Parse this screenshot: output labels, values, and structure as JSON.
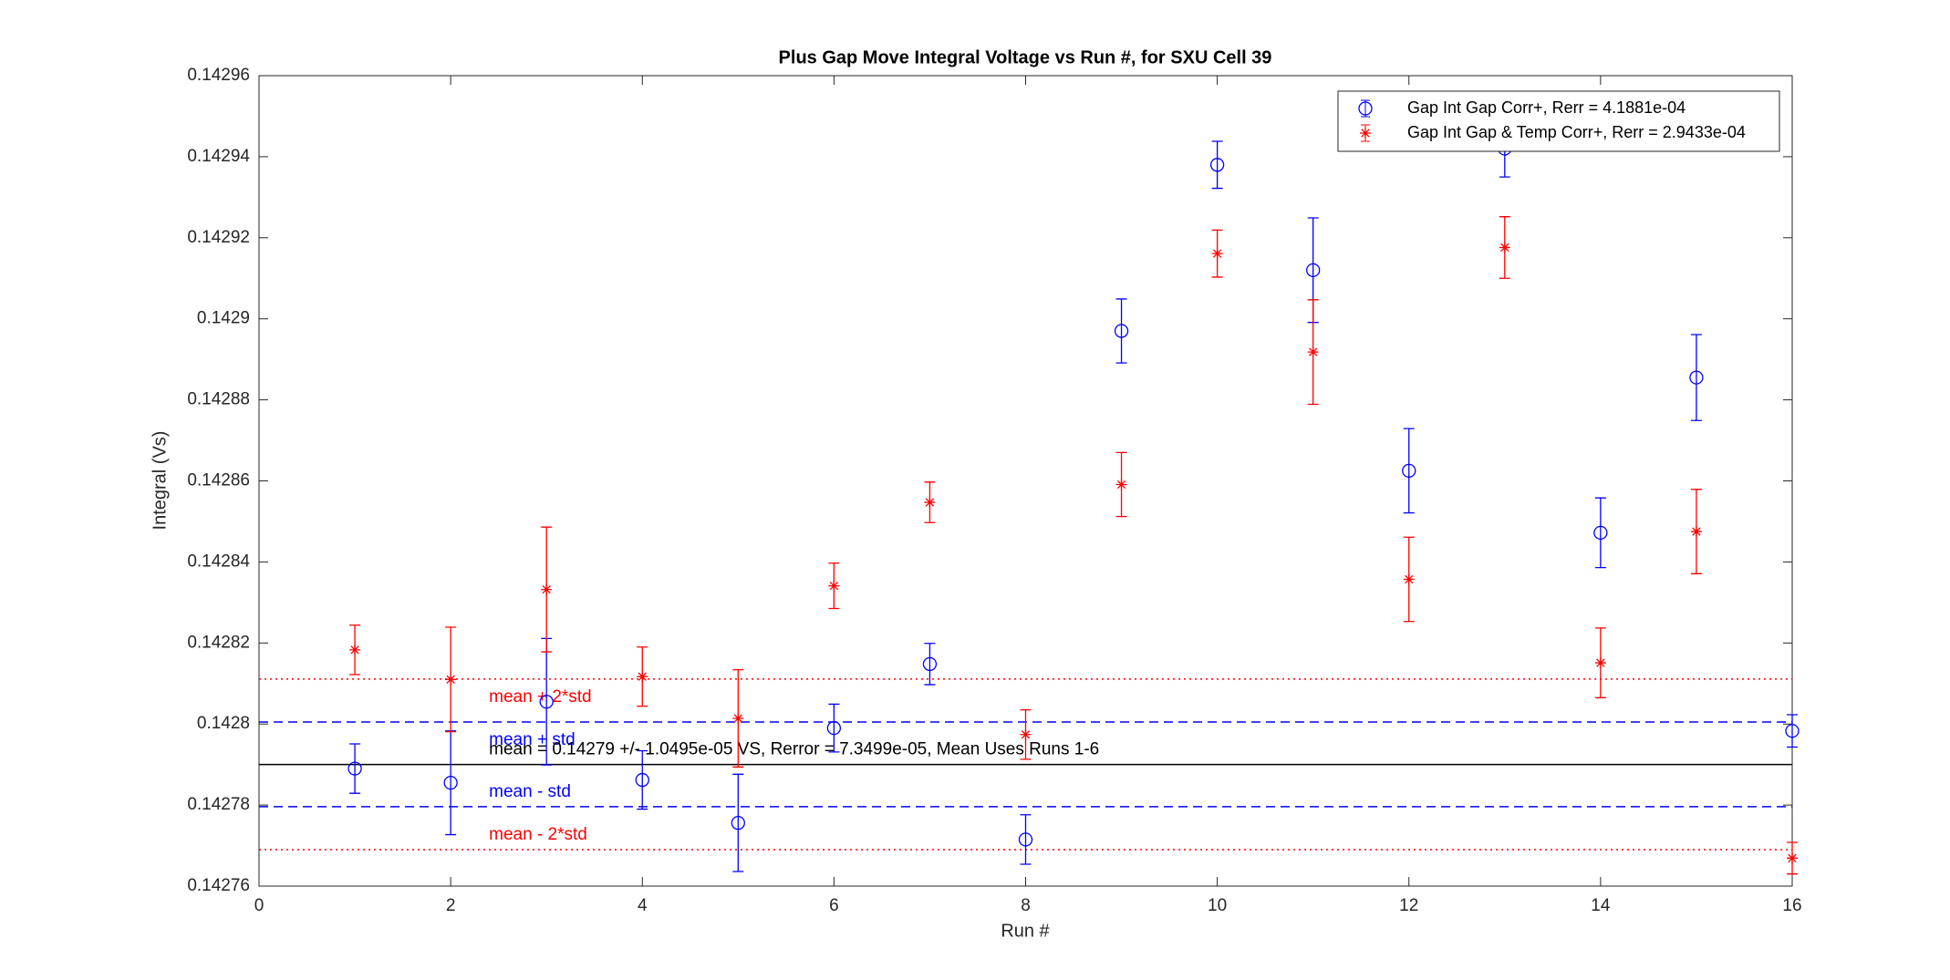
{
  "chart_data": {
    "type": "errorbar",
    "title": "Plus Gap Move Integral Voltage vs Run #, for SXU Cell 39",
    "x_label": "Run #",
    "y_label": "Integral (Vs)",
    "xlim": [
      0,
      16
    ],
    "xticks": [
      0,
      2,
      4,
      6,
      8,
      10,
      12,
      14,
      16
    ],
    "ylim": [
      0.14276,
      0.14296
    ],
    "yticks": [
      0.14276,
      0.14278,
      0.1428,
      0.14282,
      0.14284,
      0.14286,
      0.14288,
      0.1429,
      0.14292,
      0.14294,
      0.14296
    ],
    "legend": "northeast",
    "series": [
      {
        "name": "Gap Int Gap Corr+, Rerr = 4.1881e-04",
        "color": "#0000ff",
        "marker": "circle",
        "x": [
          1,
          2,
          3,
          4,
          5,
          6,
          7,
          8,
          9,
          10,
          11,
          12,
          13,
          14,
          15,
          16
        ],
        "values": [
          0.142789,
          0.1427855,
          0.1428055,
          0.1427862,
          0.1427756,
          0.142799,
          0.1428148,
          0.1427715,
          0.142897,
          0.142938,
          0.142912,
          0.1428625,
          0.142942,
          0.1428472,
          0.1428855,
          0.1427983
        ],
        "errors": [
          6.1e-06,
          1.28e-05,
          1.56e-05,
          7.2e-06,
          1.2e-05,
          5.9e-06,
          5.1e-06,
          6.1e-06,
          7.9e-06,
          5.8e-06,
          1.29e-05,
          1.04e-05,
          7e-06,
          8.6e-06,
          1.06e-05,
          4e-06
        ]
      },
      {
        "name": "Gap Int Gap & Temp  Corr+, Rerr = 2.9433e-04",
        "color": "#ff0000",
        "marker": "asterisk",
        "x": [
          1,
          2,
          3,
          4,
          5,
          6,
          7,
          8,
          9,
          10,
          11,
          12,
          13,
          14,
          15,
          16
        ],
        "values": [
          0.1428183,
          0.142811,
          0.1428332,
          0.1428117,
          0.1428014,
          0.1428341,
          0.1428547,
          0.1427974,
          0.1428591,
          0.1429161,
          0.1428918,
          0.1428357,
          0.1429176,
          0.1428151,
          0.1428475,
          0.1427669
        ],
        "errors": [
          6.1e-06,
          1.29e-05,
          1.54e-05,
          7.3e-06,
          1.2e-05,
          5.6e-06,
          5e-06,
          6.1e-06,
          7.9e-06,
          5.8e-06,
          1.29e-05,
          1.04e-05,
          7.6e-06,
          8.6e-06,
          1.04e-05,
          3.9e-06
        ]
      }
    ],
    "reference_lines": [
      {
        "value": 0.1428111,
        "label": "mean + 2*std",
        "color": "#ff0000",
        "style": "dotted"
      },
      {
        "value": 0.1428005,
        "label": "mean + std",
        "color": "#0000ff",
        "style": "dashed"
      },
      {
        "value": 0.14279,
        "label": "mean = 0.14279 +/- 1.0495e-05 VS, Rerror = 7.3499e-05, Mean Uses Runs 1-6",
        "color": "#000000",
        "style": "solid"
      },
      {
        "value": 0.1427796,
        "label": "mean - std",
        "color": "#0000ff",
        "style": "dashed"
      },
      {
        "value": 0.142769,
        "label": "mean - 2*std",
        "color": "#ff0000",
        "style": "dotted"
      }
    ]
  }
}
